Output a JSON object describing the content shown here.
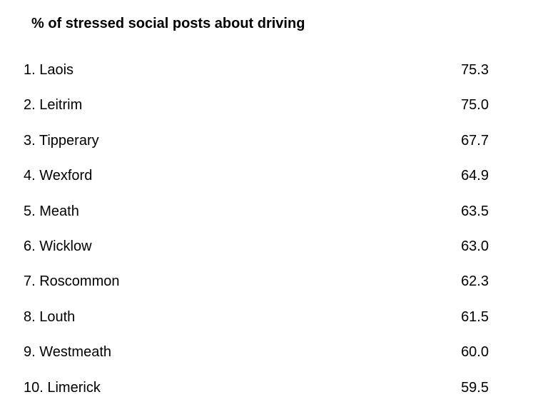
{
  "chart_data": {
    "type": "table",
    "title": "% of stressed social posts about driving",
    "rows": [
      {
        "label": "1. Laois",
        "value": "75.3"
      },
      {
        "label": "2. Leitrim",
        "value": "75.0"
      },
      {
        "label": "3. Tipperary",
        "value": "67.7"
      },
      {
        "label": "4. Wexford",
        "value": "64.9"
      },
      {
        "label": "5. Meath",
        "value": "63.5"
      },
      {
        "label": "6. Wicklow",
        "value": "63.0"
      },
      {
        "label": "7. Roscommon",
        "value": "62.3"
      },
      {
        "label": "8. Louth",
        "value": "61.5"
      },
      {
        "label": "9. Westmeath",
        "value": "60.0"
      },
      {
        "label": "10. Limerick",
        "value": "59.5"
      }
    ]
  }
}
